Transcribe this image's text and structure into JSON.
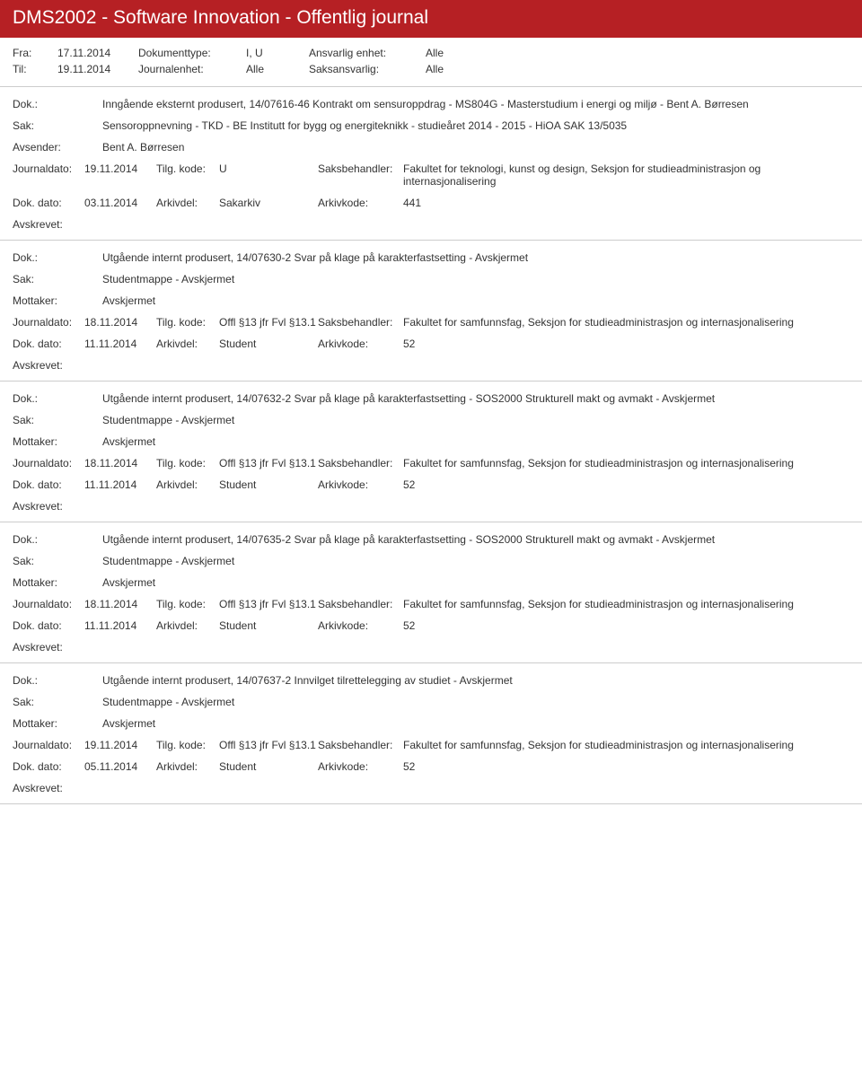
{
  "header": {
    "title": "DMS2002 - Software Innovation - Offentlig journal"
  },
  "meta": {
    "fra_label": "Fra:",
    "fra_value": "17.11.2014",
    "til_label": "Til:",
    "til_value": "19.11.2014",
    "doktype_label": "Dokumenttype:",
    "doktype_value": "I, U",
    "journalenhet_label": "Journalenhet:",
    "journalenhet_value": "Alle",
    "ansvarlig_label": "Ansvarlig enhet:",
    "ansvarlig_value": "Alle",
    "saksansvarlig_label": "Saksansvarlig:",
    "saksansvarlig_value": "Alle"
  },
  "labels": {
    "dok": "Dok.:",
    "sak": "Sak:",
    "avsender": "Avsender:",
    "mottaker": "Mottaker:",
    "journaldato": "Journaldato:",
    "tilgkode": "Tilg. kode:",
    "saksbehandler": "Saksbehandler:",
    "dokdato": "Dok. dato:",
    "arkivdel": "Arkivdel:",
    "arkivkode": "Arkivkode:",
    "avskrevet": "Avskrevet:"
  },
  "entries": [
    {
      "dok": "Inngående eksternt produsert, 14/07616-46 Kontrakt om sensuroppdrag - MS804G - Masterstudium i energi og miljø - Bent A. Børresen",
      "sak": "Sensoroppnevning - TKD - BE Institutt for bygg og energiteknikk - studieåret 2014 - 2015 - HiOA SAK 13/5035",
      "party_label": "avsender",
      "party": "Bent A. Børresen",
      "journaldato": "19.11.2014",
      "tilgkode": "U",
      "saksbehandler": "Fakultet for teknologi, kunst og design, Seksjon for studieadministrasjon og internasjonalisering",
      "dokdato": "03.11.2014",
      "arkivdel": "Sakarkiv",
      "arkivkode": "441"
    },
    {
      "dok": "Utgående internt produsert, 14/07630-2 Svar på klage på karakterfastsetting - Avskjermet",
      "sak": "Studentmappe - Avskjermet",
      "party_label": "mottaker",
      "party": "Avskjermet",
      "journaldato": "18.11.2014",
      "tilgkode": "Offl §13 jfr Fvl §13.1",
      "saksbehandler": "Fakultet for samfunnsfag, Seksjon for studieadministrasjon og internasjonalisering",
      "dokdato": "11.11.2014",
      "arkivdel": "Student",
      "arkivkode": "52"
    },
    {
      "dok": "Utgående internt produsert, 14/07632-2 Svar på klage på karakterfastsetting - SOS2000 Strukturell makt og avmakt - Avskjermet",
      "sak": "Studentmappe - Avskjermet",
      "party_label": "mottaker",
      "party": "Avskjermet",
      "journaldato": "18.11.2014",
      "tilgkode": "Offl §13 jfr Fvl §13.1",
      "saksbehandler": "Fakultet for samfunnsfag, Seksjon for studieadministrasjon og internasjonalisering",
      "dokdato": "11.11.2014",
      "arkivdel": "Student",
      "arkivkode": "52"
    },
    {
      "dok": "Utgående internt produsert, 14/07635-2 Svar på klage på karakterfastsetting - SOS2000 Strukturell makt og avmakt - Avskjermet",
      "sak": "Studentmappe - Avskjermet",
      "party_label": "mottaker",
      "party": "Avskjermet",
      "journaldato": "18.11.2014",
      "tilgkode": "Offl §13 jfr Fvl §13.1",
      "saksbehandler": "Fakultet for samfunnsfag, Seksjon for studieadministrasjon og internasjonalisering",
      "dokdato": "11.11.2014",
      "arkivdel": "Student",
      "arkivkode": "52"
    },
    {
      "dok": "Utgående internt produsert, 14/07637-2 Innvilget tilrettelegging av studiet - Avskjermet",
      "sak": "Studentmappe - Avskjermet",
      "party_label": "mottaker",
      "party": "Avskjermet",
      "journaldato": "19.11.2014",
      "tilgkode": "Offl §13 jfr Fvl §13.1",
      "saksbehandler": "Fakultet for samfunnsfag, Seksjon for studieadministrasjon og internasjonalisering",
      "dokdato": "05.11.2014",
      "arkivdel": "Student",
      "arkivkode": "52"
    }
  ]
}
